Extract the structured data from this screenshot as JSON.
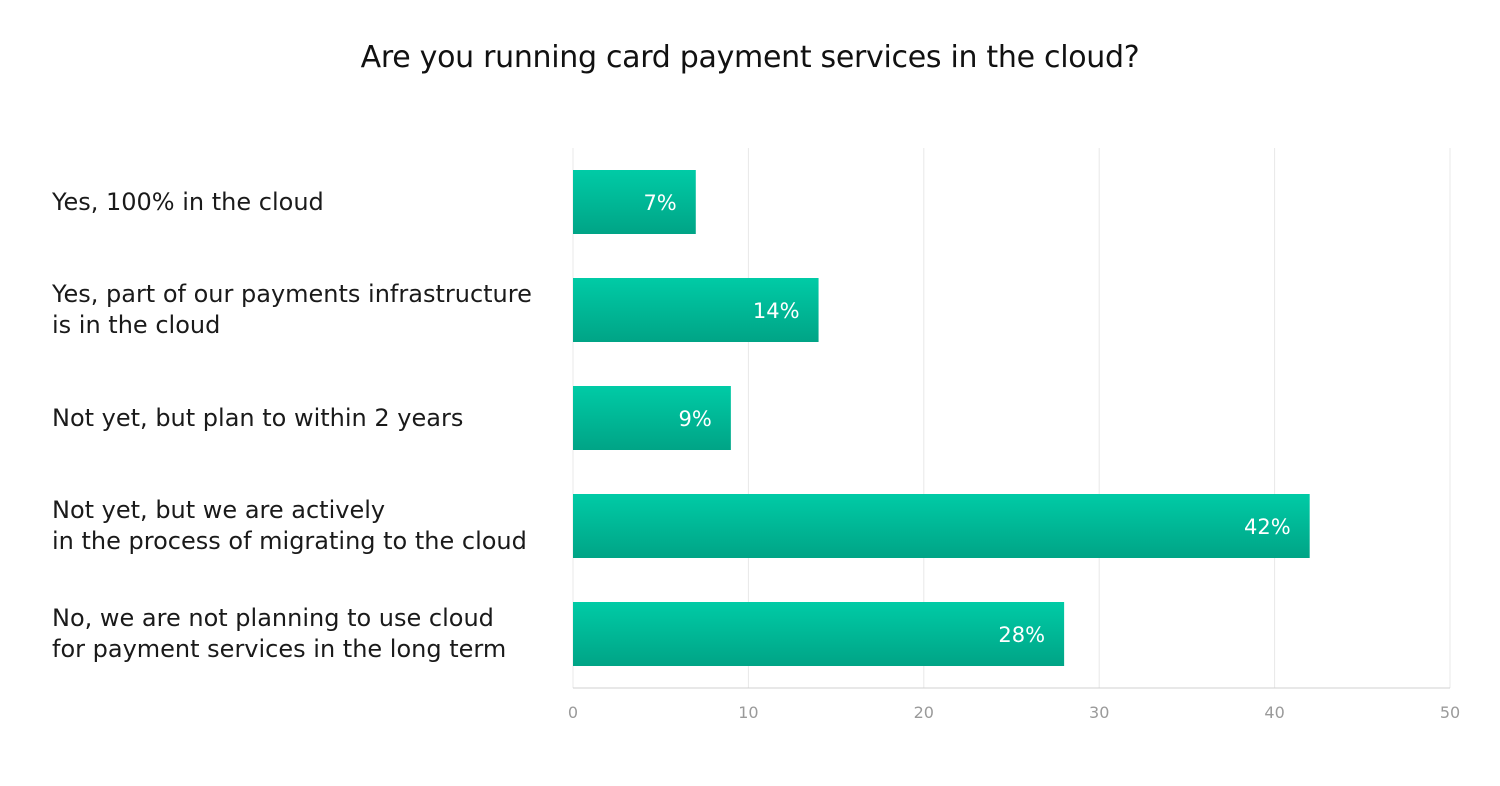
{
  "chart_data": {
    "type": "bar",
    "orientation": "horizontal",
    "title": "Are you running card payment services in the cloud?",
    "categories": [
      "Yes, 100% in the cloud",
      "Yes, part of our payments infrastructure\nis in the cloud",
      "Not yet, but plan to within 2 years",
      "Not yet, but we are actively\nin the process of migrating to the cloud",
      "No, we are not planning to use cloud\nfor payment services in the long term"
    ],
    "values": [
      7,
      14,
      9,
      42,
      28
    ],
    "value_labels": [
      "7%",
      "14%",
      "9%",
      "42%",
      "28%"
    ],
    "xlim": [
      0,
      50
    ],
    "x_ticks": [
      0,
      10,
      20,
      30,
      40,
      50
    ],
    "x_tick_labels": [
      "0",
      "10",
      "20",
      "30",
      "40",
      "50"
    ],
    "grid": true,
    "colors": {
      "bar_top": "#00CBA6",
      "bar_bottom": "#00A486",
      "grid": "#E8E8E8",
      "axis": "#D0D0D0",
      "tick_text": "#9A9A9A",
      "value_text": "#FFFFFF"
    }
  }
}
